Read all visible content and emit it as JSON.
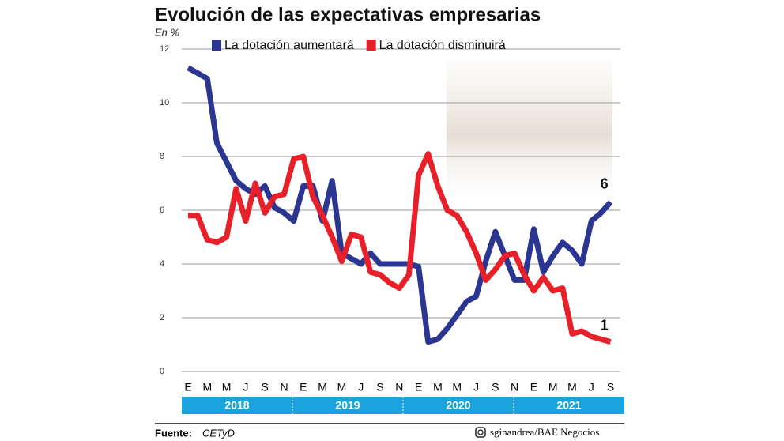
{
  "chart_data": {
    "type": "line",
    "title": "Evolución de las expectativas empresarias",
    "subtitle": "En %",
    "categories": [
      "E",
      null,
      "M",
      null,
      "M",
      null,
      "J",
      null,
      "S",
      null,
      "N",
      null,
      "E",
      null,
      "M",
      null,
      "M",
      null,
      "J",
      null,
      "S",
      null,
      "N",
      null,
      "E",
      null,
      "M",
      null,
      "M",
      null,
      "J",
      null,
      "S",
      null,
      "N",
      null,
      "E",
      null,
      "M",
      null,
      "M",
      null,
      "J",
      null,
      "S"
    ],
    "years": [
      "2018",
      "2019",
      "2020",
      "2021"
    ],
    "series": [
      {
        "name": "La dotación aumentará",
        "color": "#2b3592",
        "values": [
          11.3,
          11.1,
          10.9,
          8.5,
          7.8,
          7.1,
          6.8,
          6.6,
          6.9,
          6.1,
          5.9,
          5.6,
          6.9,
          6.9,
          5.6,
          7.1,
          4.4,
          4.2,
          4.0,
          4.4,
          4.0,
          4.0,
          4.0,
          4.0,
          3.9,
          1.1,
          1.2,
          1.6,
          2.1,
          2.6,
          2.8,
          4.1,
          5.2,
          4.3,
          3.4,
          3.4,
          5.3,
          3.7,
          4.3,
          4.8,
          4.5,
          4.0,
          5.6,
          5.9,
          6.3
        ],
        "value_labels": [
          null,
          null,
          null,
          null,
          null,
          null,
          null,
          null,
          null,
          null,
          null,
          null,
          null,
          null,
          null,
          null,
          null,
          null,
          null,
          null,
          null,
          null,
          null,
          null,
          null,
          null,
          null,
          null,
          null,
          null,
          null,
          null,
          null,
          null,
          null,
          null,
          null,
          null,
          null,
          null,
          null,
          null,
          null,
          null,
          "6"
        ]
      },
      {
        "name": "La dotación disminuirá",
        "color": "#e8202a",
        "values": [
          5.8,
          5.8,
          4.9,
          4.8,
          5.0,
          6.8,
          5.6,
          7.0,
          5.9,
          6.5,
          6.6,
          7.9,
          8.0,
          6.5,
          5.8,
          5.0,
          4.1,
          5.1,
          5.0,
          3.7,
          3.6,
          3.3,
          3.1,
          3.6,
          7.3,
          8.1,
          6.9,
          6.0,
          5.8,
          5.2,
          4.4,
          3.4,
          3.8,
          4.3,
          4.4,
          3.6,
          3.0,
          3.5,
          3.0,
          3.1,
          1.4,
          1.5,
          1.3,
          1.2,
          1.1
        ],
        "value_labels": [
          null,
          null,
          null,
          null,
          null,
          null,
          null,
          null,
          null,
          null,
          null,
          null,
          null,
          null,
          null,
          null,
          null,
          null,
          null,
          null,
          null,
          null,
          null,
          null,
          null,
          null,
          null,
          null,
          null,
          null,
          null,
          null,
          null,
          null,
          null,
          null,
          null,
          null,
          null,
          null,
          null,
          null,
          null,
          null,
          "1"
        ]
      }
    ],
    "ylim": [
      0,
      12
    ],
    "yticks": [
      0,
      2,
      4,
      6,
      8,
      10,
      12
    ],
    "grid": true,
    "source_label": "Fuente:",
    "source": "CETyD",
    "credit": "sginandrea/BAE Negocios"
  }
}
